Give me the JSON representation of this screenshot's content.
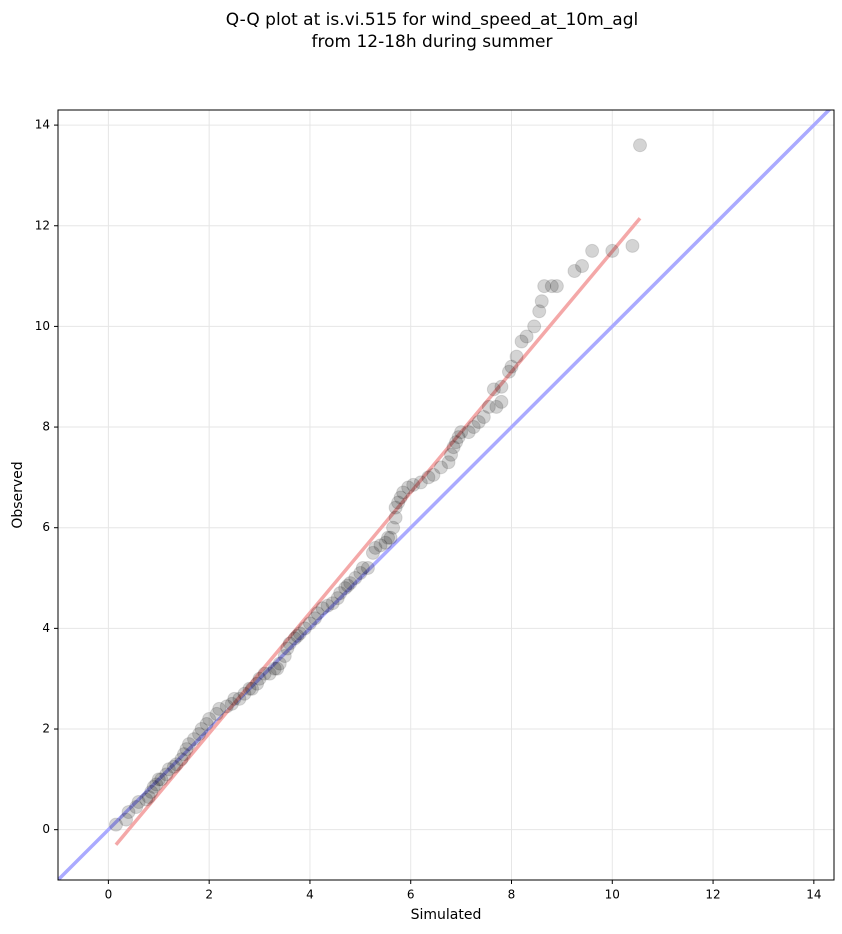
{
  "chart_data": {
    "type": "scatter",
    "title": [
      "Q-Q plot at is.vi.515 for wind_speed_at_10m_agl",
      "from 12-18h during summer"
    ],
    "xlabel": "Simulated",
    "ylabel": "Observed",
    "xlim": [
      -1.0,
      14.4
    ],
    "ylim": [
      -1.0,
      14.3
    ],
    "xticks": [
      0,
      2,
      4,
      6,
      8,
      10,
      12,
      14
    ],
    "yticks": [
      0,
      2,
      4,
      6,
      8,
      10,
      12,
      14
    ],
    "grid": true,
    "color": "#000000",
    "x": [
      0.15,
      0.35,
      0.4,
      0.55,
      0.6,
      0.75,
      0.8,
      0.85,
      0.9,
      0.95,
      1.0,
      1.05,
      1.15,
      1.2,
      1.3,
      1.35,
      1.45,
      1.5,
      1.55,
      1.6,
      1.7,
      1.8,
      1.85,
      1.95,
      2.0,
      2.15,
      2.2,
      2.35,
      2.45,
      2.5,
      2.6,
      2.7,
      2.8,
      2.85,
      2.95,
      3.0,
      3.1,
      3.2,
      3.3,
      3.35,
      3.4,
      3.5,
      3.55,
      3.6,
      3.7,
      3.75,
      3.8,
      3.9,
      4.0,
      4.1,
      4.15,
      4.25,
      4.35,
      4.45,
      4.55,
      4.6,
      4.7,
      4.75,
      4.8,
      4.9,
      5.0,
      5.05,
      5.15,
      5.25,
      5.3,
      5.4,
      5.5,
      5.55,
      5.6,
      5.65,
      5.7,
      5.7,
      5.75,
      5.8,
      5.85,
      5.95,
      6.05,
      6.2,
      6.35,
      6.45,
      6.6,
      6.75,
      6.8,
      6.85,
      6.9,
      6.95,
      7.0,
      7.15,
      7.25,
      7.35,
      7.45,
      7.55,
      7.7,
      7.8,
      7.65,
      7.8,
      7.95,
      8.0,
      8.1,
      8.2,
      8.3,
      8.45,
      8.55,
      8.6,
      8.65,
      8.8,
      8.9,
      9.25,
      9.4,
      9.6,
      10.0,
      10.4,
      10.55
    ],
    "values": [
      0.1,
      0.2,
      0.35,
      0.45,
      0.55,
      0.6,
      0.65,
      0.75,
      0.85,
      0.9,
      1.0,
      1.0,
      1.1,
      1.2,
      1.25,
      1.3,
      1.4,
      1.5,
      1.6,
      1.7,
      1.8,
      1.9,
      2.0,
      2.1,
      2.2,
      2.3,
      2.4,
      2.45,
      2.5,
      2.6,
      2.6,
      2.7,
      2.8,
      2.8,
      2.9,
      3.0,
      3.1,
      3.1,
      3.2,
      3.2,
      3.3,
      3.45,
      3.6,
      3.7,
      3.8,
      3.85,
      3.9,
      4.0,
      4.1,
      4.2,
      4.3,
      4.4,
      4.45,
      4.5,
      4.6,
      4.7,
      4.8,
      4.85,
      4.9,
      5.0,
      5.1,
      5.2,
      5.2,
      5.5,
      5.6,
      5.65,
      5.7,
      5.8,
      5.8,
      6.0,
      6.2,
      6.4,
      6.5,
      6.6,
      6.7,
      6.8,
      6.85,
      6.9,
      7.0,
      7.05,
      7.2,
      7.3,
      7.45,
      7.6,
      7.7,
      7.8,
      7.9,
      7.9,
      8.0,
      8.1,
      8.2,
      8.4,
      8.4,
      8.5,
      8.75,
      8.8,
      9.1,
      9.2,
      9.4,
      9.7,
      9.8,
      10.0,
      10.3,
      10.5,
      10.8,
      10.8,
      10.8,
      11.1,
      11.2,
      11.5,
      11.5,
      11.6,
      13.6
    ],
    "lines": [
      {
        "color": "#aaaaff",
        "x": [
          -1.0,
          14.4
        ],
        "values": [
          -1.0,
          14.4
        ]
      },
      {
        "color": "#f4a8a8",
        "x": [
          0.15,
          10.55
        ],
        "values": [
          -0.3,
          12.15
        ]
      }
    ]
  }
}
